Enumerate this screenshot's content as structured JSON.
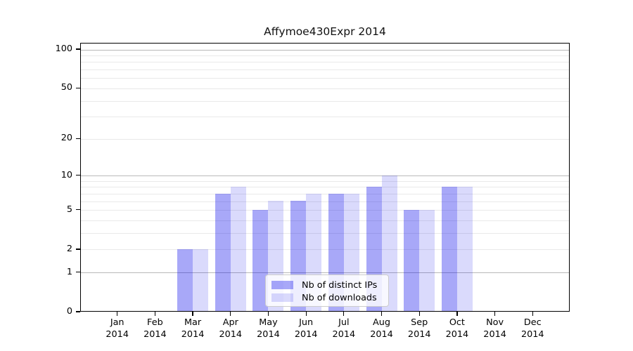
{
  "chart_data": {
    "type": "bar",
    "title": "Affymoe430Expr 2014",
    "categories": [
      "Jan",
      "Feb",
      "Mar",
      "Apr",
      "May",
      "Jun",
      "Jul",
      "Aug",
      "Sep",
      "Oct",
      "Nov",
      "Dec"
    ],
    "category_year": "2014",
    "series": [
      {
        "name": "Nb of distinct IPs",
        "color": "#0000eb",
        "alpha": 0.34,
        "solid_color": "#ababf8",
        "values": [
          0,
          0,
          2,
          7,
          5,
          6,
          7,
          8,
          5,
          8,
          0,
          0
        ]
      },
      {
        "name": "Nb of downloads",
        "color": "#0000eb",
        "alpha": 0.145,
        "solid_color": "#dcdcfb",
        "values": [
          0,
          0,
          2,
          8,
          6,
          7,
          7,
          10,
          5,
          8,
          0,
          0
        ]
      }
    ],
    "yscale": "log1p",
    "ylim": [
      0,
      112
    ],
    "yticks": [
      {
        "value": 0,
        "label": "0"
      },
      {
        "value": 1,
        "label": "1"
      },
      {
        "value": 2,
        "label": "2"
      },
      {
        "value": 5,
        "label": "5"
      },
      {
        "value": 10,
        "label": "10"
      },
      {
        "value": 20,
        "label": "20"
      },
      {
        "value": 50,
        "label": "50"
      },
      {
        "value": 100,
        "label": "100"
      }
    ],
    "major_gridlines": [
      1,
      10,
      100
    ],
    "minor_gridlines": [
      2,
      3,
      4,
      5,
      6,
      7,
      8,
      9,
      20,
      30,
      40,
      50,
      60,
      70,
      80,
      90
    ],
    "grid_colors": {
      "major": "#b9b9b9",
      "minor": "#e9e9e9"
    },
    "legend_position": "lower center",
    "grid": true
  }
}
